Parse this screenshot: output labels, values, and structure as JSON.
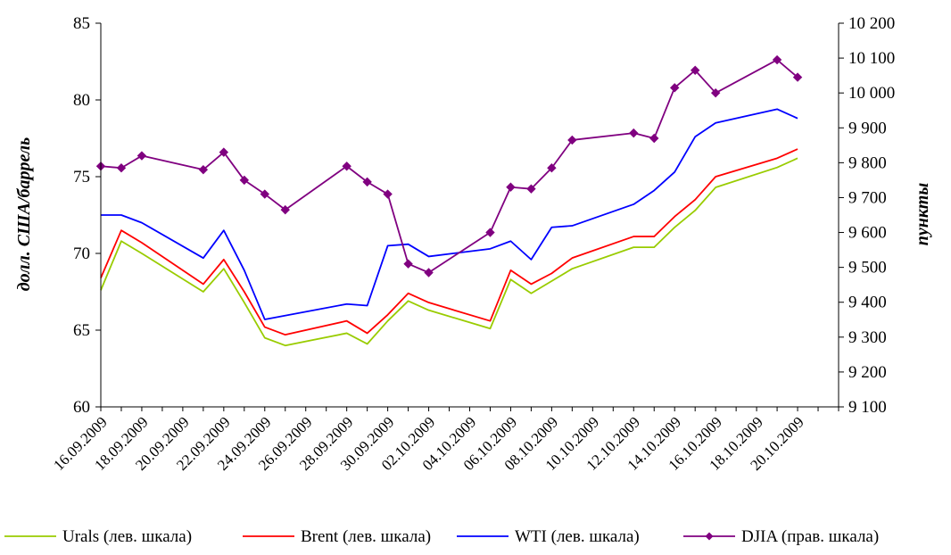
{
  "chart_data": {
    "type": "line",
    "title": "",
    "xlabel": "",
    "ylabel": "долл. США/баррель",
    "y2label": "пункты",
    "ylim": [
      60,
      85
    ],
    "y2lim": [
      9100,
      10200
    ],
    "yticks": [
      "60",
      "65",
      "70",
      "75",
      "80",
      "85"
    ],
    "y2ticks": [
      "9 100",
      "9 200",
      "9 300",
      "9 400",
      "9 500",
      "9 600",
      "9 700",
      "9 800",
      "9 900",
      "10 000",
      "10 100",
      "10 200"
    ],
    "xlim": [
      "2009-09-16",
      "2009-10-22"
    ],
    "x_tick_labels": [
      "16.09.2009",
      "18.09.2009",
      "20.09.2009",
      "22.09.2009",
      "24.09.2009",
      "26.09.2009",
      "28.09.2009",
      "30.09.2009",
      "02.10.2009",
      "04.10.2009",
      "06.10.2009",
      "08.10.2009",
      "10.10.2009",
      "12.10.2009",
      "14.10.2009",
      "16.10.2009",
      "18.10.2009",
      "20.10.2009"
    ],
    "grid": false,
    "legend_position": "bottom",
    "series": [
      {
        "name": "Urals (лев. шкала)",
        "color": "#99cc00",
        "axis": "left",
        "marker": "none",
        "points": [
          [
            "2009-09-16",
            67.6
          ],
          [
            "2009-09-17",
            70.8
          ],
          [
            "2009-09-18",
            70.0
          ],
          [
            "2009-09-21",
            67.5
          ],
          [
            "2009-09-22",
            69.0
          ],
          [
            "2009-09-23",
            66.8
          ],
          [
            "2009-09-24",
            64.5
          ],
          [
            "2009-09-25",
            64.0
          ],
          [
            "2009-09-28",
            64.8
          ],
          [
            "2009-09-29",
            64.1
          ],
          [
            "2009-09-30",
            65.6
          ],
          [
            "2009-10-01",
            66.9
          ],
          [
            "2009-10-02",
            66.3
          ],
          [
            "2009-10-05",
            65.1
          ],
          [
            "2009-10-06",
            68.3
          ],
          [
            "2009-10-07",
            67.4
          ],
          [
            "2009-10-08",
            68.2
          ],
          [
            "2009-10-09",
            69.0
          ],
          [
            "2009-10-12",
            70.4
          ],
          [
            "2009-10-13",
            70.4
          ],
          [
            "2009-10-14",
            71.7
          ],
          [
            "2009-10-15",
            72.8
          ],
          [
            "2009-10-16",
            74.3
          ],
          [
            "2009-10-19",
            75.6
          ],
          [
            "2009-10-20",
            76.2
          ]
        ]
      },
      {
        "name": "Brent (лев. шкала)",
        "color": "#ff0000",
        "axis": "left",
        "marker": "none",
        "points": [
          [
            "2009-09-16",
            68.4
          ],
          [
            "2009-09-17",
            71.5
          ],
          [
            "2009-09-18",
            70.7
          ],
          [
            "2009-09-21",
            68.0
          ],
          [
            "2009-09-22",
            69.6
          ],
          [
            "2009-09-23",
            67.5
          ],
          [
            "2009-09-24",
            65.2
          ],
          [
            "2009-09-25",
            64.7
          ],
          [
            "2009-09-28",
            65.6
          ],
          [
            "2009-09-29",
            64.8
          ],
          [
            "2009-09-30",
            66.0
          ],
          [
            "2009-10-01",
            67.4
          ],
          [
            "2009-10-02",
            66.8
          ],
          [
            "2009-10-05",
            65.6
          ],
          [
            "2009-10-06",
            68.9
          ],
          [
            "2009-10-07",
            68.0
          ],
          [
            "2009-10-08",
            68.7
          ],
          [
            "2009-10-09",
            69.7
          ],
          [
            "2009-10-12",
            71.1
          ],
          [
            "2009-10-13",
            71.1
          ],
          [
            "2009-10-14",
            72.4
          ],
          [
            "2009-10-15",
            73.5
          ],
          [
            "2009-10-16",
            75.0
          ],
          [
            "2009-10-19",
            76.2
          ],
          [
            "2009-10-20",
            76.8
          ]
        ]
      },
      {
        "name": "WTI (лев. шкала)",
        "color": "#0000ff",
        "axis": "left",
        "marker": "none",
        "points": [
          [
            "2009-09-16",
            72.5
          ],
          [
            "2009-09-17",
            72.5
          ],
          [
            "2009-09-18",
            72.0
          ],
          [
            "2009-09-21",
            69.7
          ],
          [
            "2009-09-22",
            71.5
          ],
          [
            "2009-09-23",
            68.9
          ],
          [
            "2009-09-24",
            65.7
          ],
          [
            "2009-09-28",
            66.7
          ],
          [
            "2009-09-29",
            66.6
          ],
          [
            "2009-09-30",
            70.5
          ],
          [
            "2009-10-01",
            70.6
          ],
          [
            "2009-10-02",
            69.8
          ],
          [
            "2009-10-05",
            70.3
          ],
          [
            "2009-10-06",
            70.8
          ],
          [
            "2009-10-07",
            69.6
          ],
          [
            "2009-10-08",
            71.7
          ],
          [
            "2009-10-09",
            71.8
          ],
          [
            "2009-10-12",
            73.2
          ],
          [
            "2009-10-13",
            74.1
          ],
          [
            "2009-10-14",
            75.3
          ],
          [
            "2009-10-15",
            77.6
          ],
          [
            "2009-10-16",
            78.5
          ],
          [
            "2009-10-19",
            79.4
          ],
          [
            "2009-10-20",
            78.8
          ]
        ]
      },
      {
        "name": "DJIA (прав. шкала)",
        "color": "#800080",
        "axis": "right",
        "marker": "diamond",
        "points": [
          [
            "2009-09-16",
            9790
          ],
          [
            "2009-09-17",
            9785
          ],
          [
            "2009-09-18",
            9820
          ],
          [
            "2009-09-21",
            9780
          ],
          [
            "2009-09-22",
            9830
          ],
          [
            "2009-09-23",
            9750
          ],
          [
            "2009-09-24",
            9710
          ],
          [
            "2009-09-25",
            9665
          ],
          [
            "2009-09-28",
            9790
          ],
          [
            "2009-09-29",
            9745
          ],
          [
            "2009-09-30",
            9710
          ],
          [
            "2009-10-01",
            9510
          ],
          [
            "2009-10-02",
            9485
          ],
          [
            "2009-10-05",
            9600
          ],
          [
            "2009-10-06",
            9730
          ],
          [
            "2009-10-07",
            9725
          ],
          [
            "2009-10-08",
            9785
          ],
          [
            "2009-10-09",
            9865
          ],
          [
            "2009-10-12",
            9885
          ],
          [
            "2009-10-13",
            9870
          ],
          [
            "2009-10-14",
            10015
          ],
          [
            "2009-10-15",
            10065
          ],
          [
            "2009-10-16",
            10000
          ],
          [
            "2009-10-19",
            10095
          ],
          [
            "2009-10-20",
            10045
          ]
        ]
      }
    ]
  }
}
